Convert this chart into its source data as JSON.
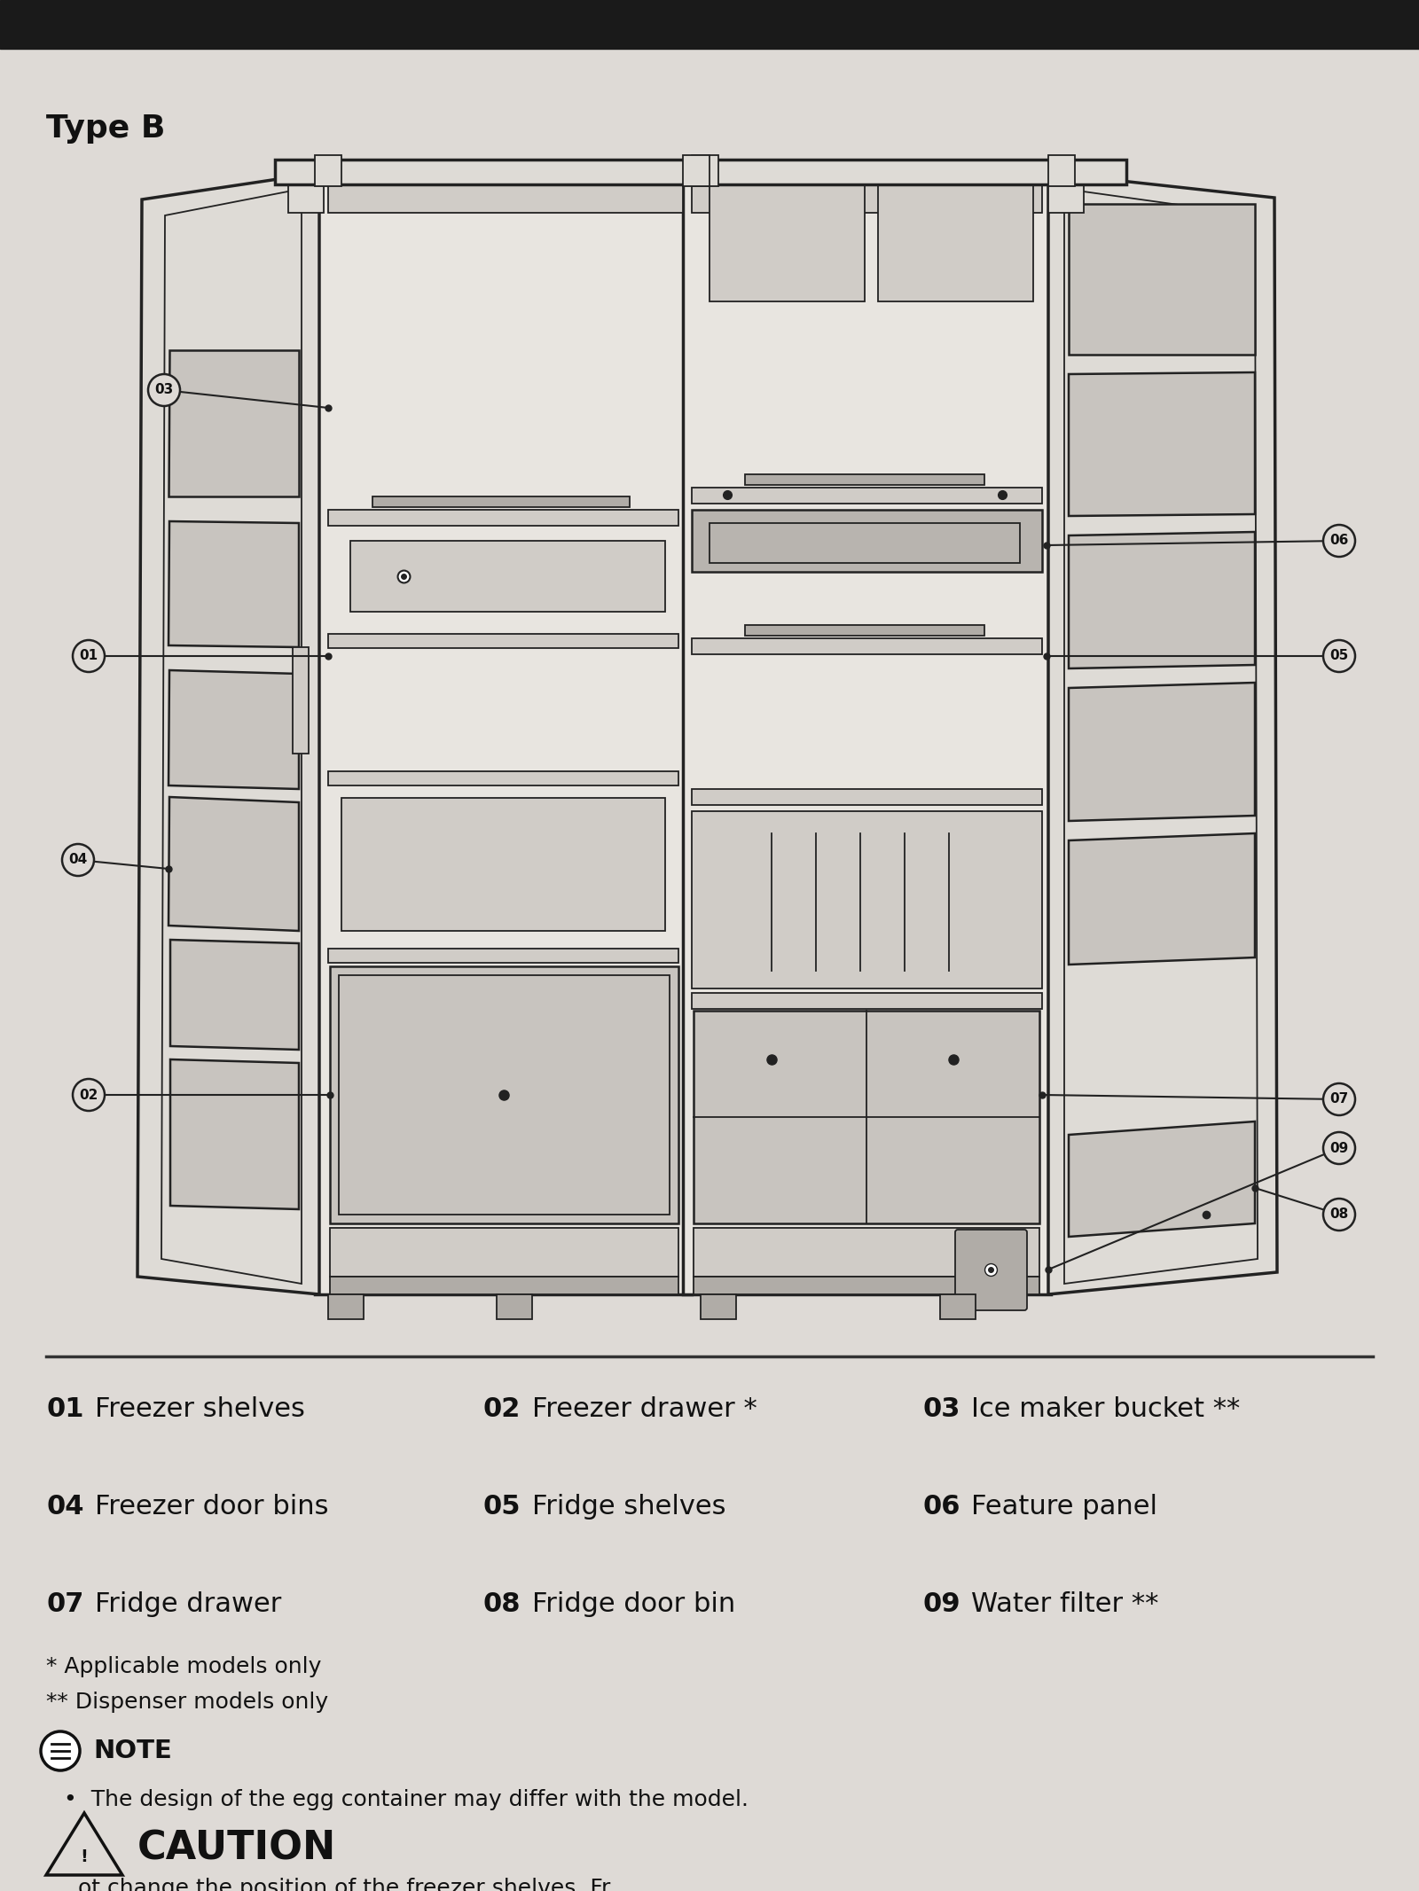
{
  "title": "Type B",
  "bg_color": "#dedad6",
  "top_stripe_color": "#1a1a1a",
  "line_color": "#222222",
  "parts": [
    {
      "num": "01",
      "desc": "Freezer shelves"
    },
    {
      "num": "02",
      "desc": "Freezer drawer *"
    },
    {
      "num": "03",
      "desc": "Ice maker bucket **"
    },
    {
      "num": "04",
      "desc": "Freezer door bins"
    },
    {
      "num": "05",
      "desc": "Fridge shelves"
    },
    {
      "num": "06",
      "desc": "Feature panel"
    },
    {
      "num": "07",
      "desc": "Fridge drawer"
    },
    {
      "num": "08",
      "desc": "Fridge door bin"
    },
    {
      "num": "09",
      "desc": "Water filter **"
    }
  ],
  "footnotes": [
    "* Applicable models only",
    "** Dispenser models only"
  ],
  "note_title": "NOTE",
  "note_text": "The design of the egg container may differ with the model.",
  "caution_title": "CAUTION",
  "caution_text": "ot change the position of the freezer shelves. Fr..."
}
